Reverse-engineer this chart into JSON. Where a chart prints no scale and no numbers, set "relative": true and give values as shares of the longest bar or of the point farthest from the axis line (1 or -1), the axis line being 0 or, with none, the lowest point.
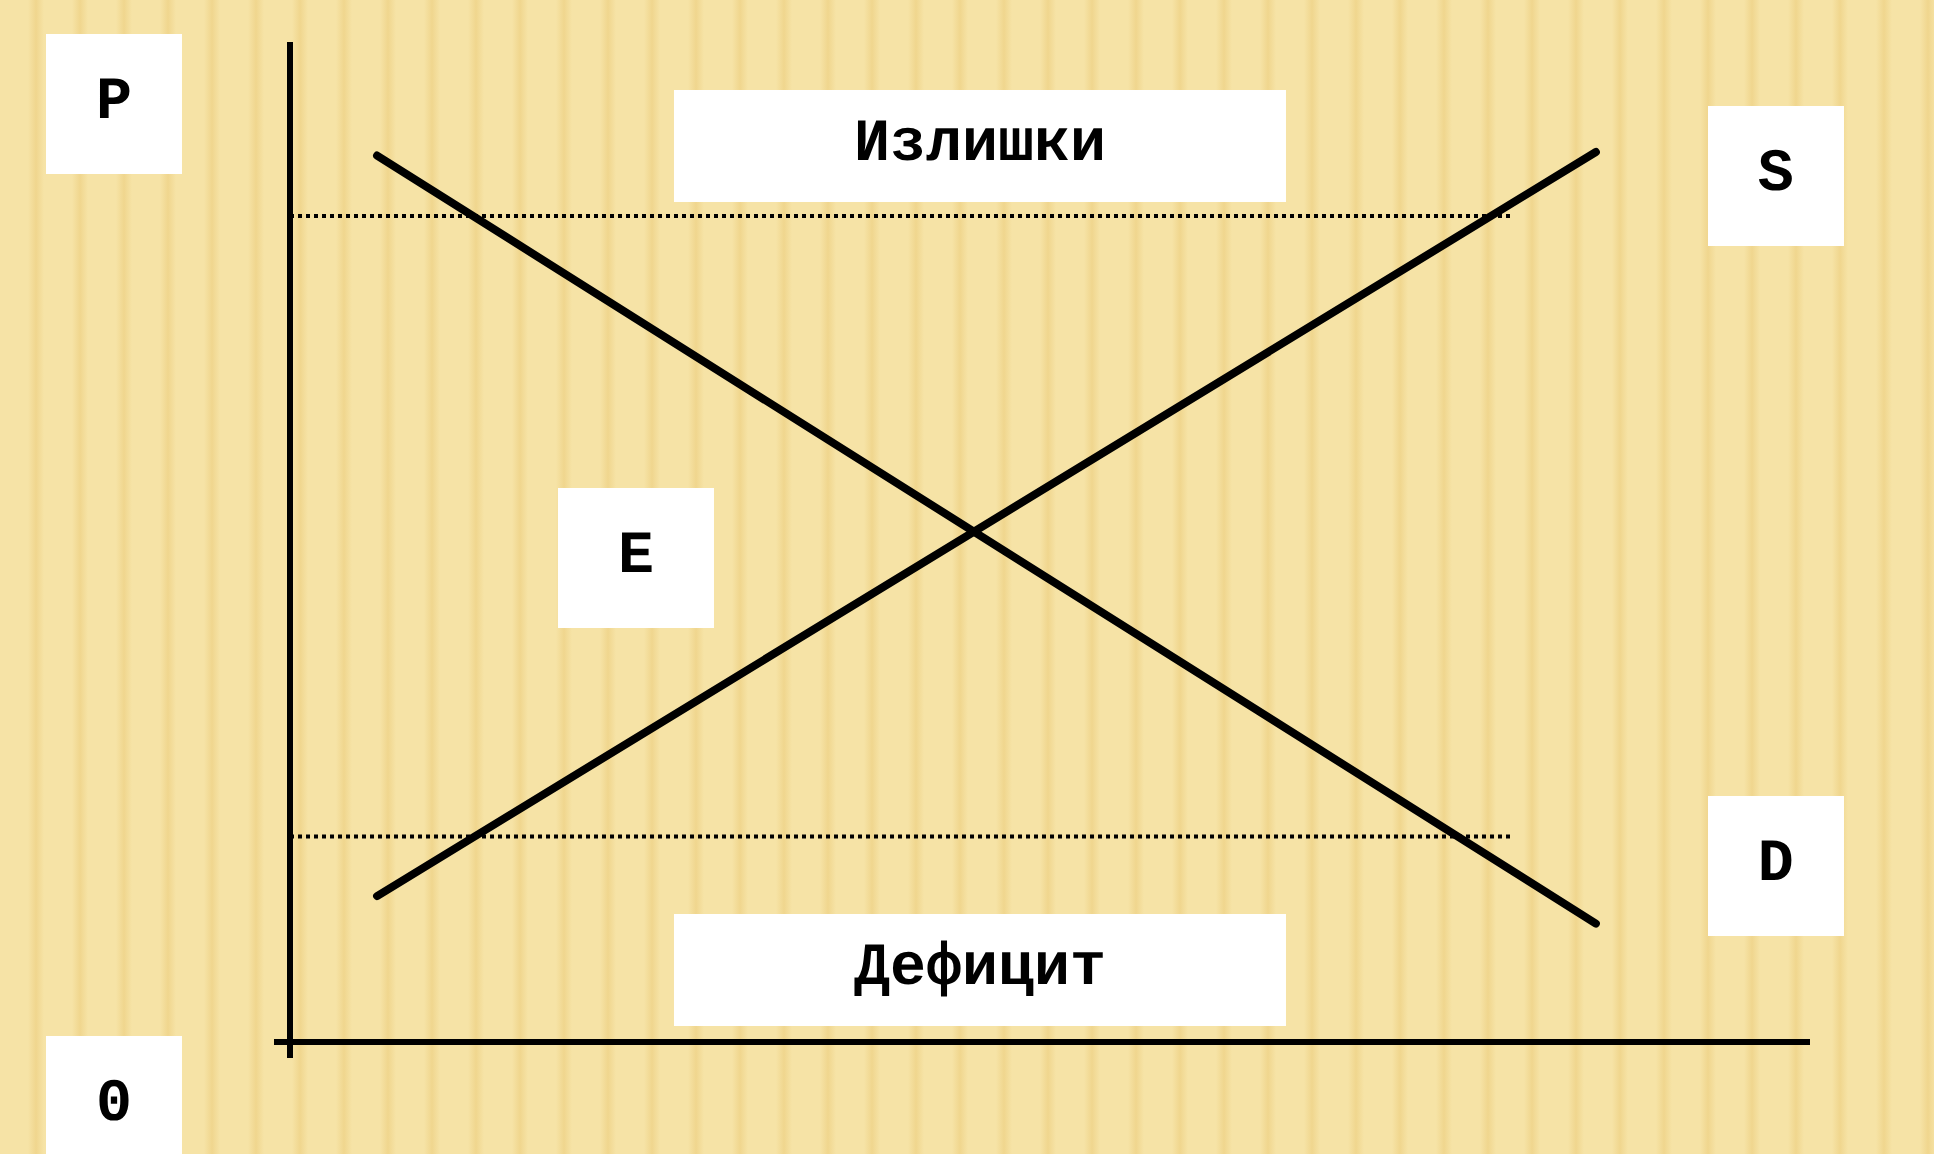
{
  "chart_data": {
    "type": "line",
    "ylabel": "P",
    "relative": true,
    "categories": [
      null,
      null,
      null,
      null,
      null,
      null,
      null,
      null,
      null,
      null,
      null,
      null,
      null,
      null,
      null,
      null,
      null,
      null
    ],
    "series": [
      {
        "name": "D",
        "color": "#000000",
        "values": [
          null,
          0.996,
          null,
          null,
          null,
          null,
          null,
          null,
          null,
          null,
          null,
          null,
          null,
          null,
          null,
          0.133,
          null,
          null
        ]
      },
      {
        "name": "S",
        "color": "#000000",
        "values": [
          null,
          0.164,
          null,
          null,
          null,
          null,
          null,
          null,
          null,
          null,
          null,
          null,
          null,
          null,
          null,
          1,
          null,
          null
        ]
      }
    ],
    "ref_lines": [
      {
        "axis": "y",
        "value": 0.928,
        "label": "Излишки",
        "line_style": "dotted"
      },
      {
        "axis": "y",
        "value": 0.231,
        "label": "Дефицит",
        "line_style": "dotted"
      }
    ],
    "annotations": [
      "0",
      "E"
    ],
    "legend": false,
    "marker": "none",
    "line_style": "solid"
  }
}
